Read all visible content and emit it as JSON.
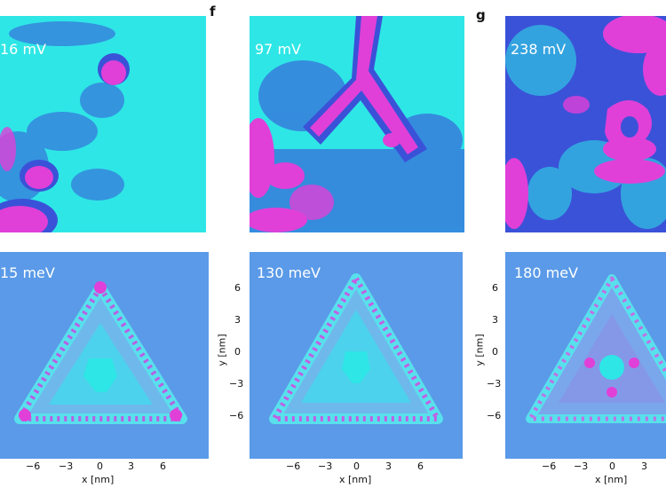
{
  "panel_letters": {
    "f": "f",
    "g": "g"
  },
  "stm_maps": [
    {
      "energy": "16 mV"
    },
    {
      "energy": "97 mV"
    },
    {
      "energy": "238 mV"
    }
  ],
  "ldos_maps": [
    {
      "energy": "15 meV"
    },
    {
      "energy": "130 meV"
    },
    {
      "energy": "180 meV"
    }
  ],
  "axes": {
    "xlabel": "x [nm]",
    "ylabel": "y [nm]",
    "x_ticks": [
      "−6",
      "−3",
      "0",
      "3",
      "6"
    ],
    "y_ticks": [
      "6",
      "3",
      "0",
      "−3",
      "−6"
    ]
  },
  "colors": {
    "cyan": "#2ee6e6",
    "blue": "#3a52d8",
    "magenta": "#e040d8",
    "sim_bg": "#5a9ae8"
  }
}
